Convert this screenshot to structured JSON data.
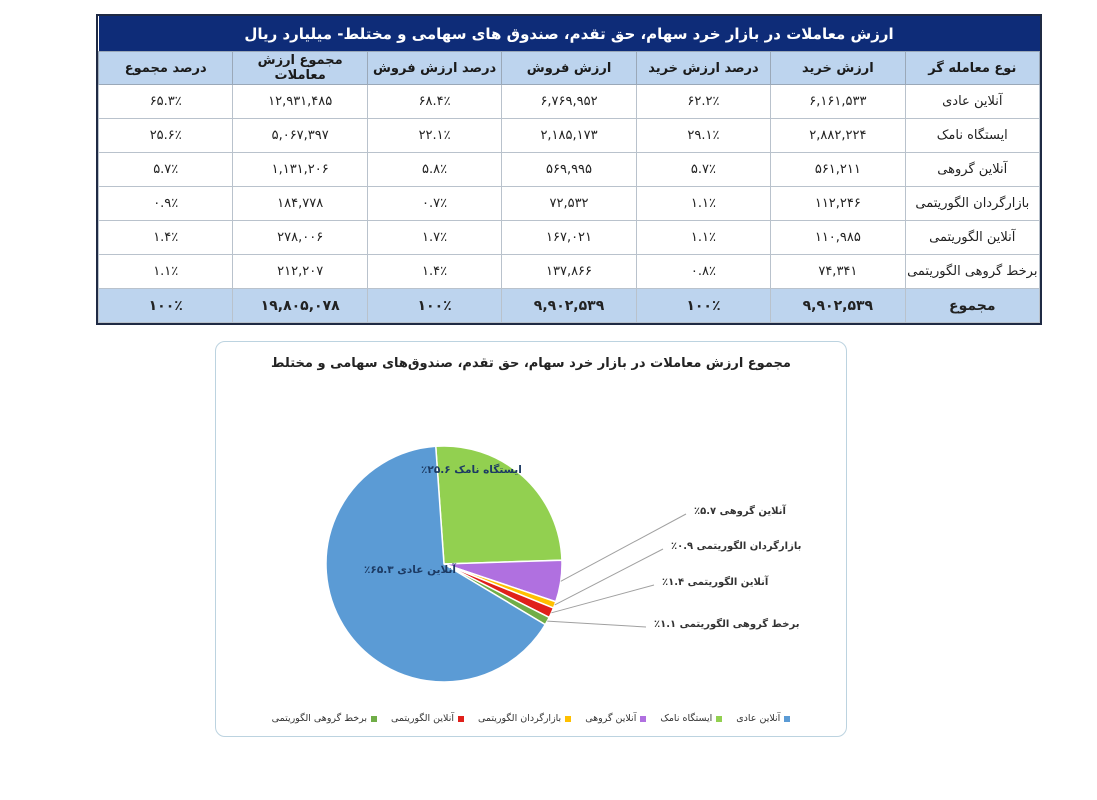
{
  "table": {
    "title": "ارزش معاملات در بازار خرد سهام، حق تقدم، صندوق های سهامی و مختلط- میلیارد ریال",
    "headers": [
      "نوع معامله گر",
      "ارزش خرید",
      "درصد ارزش خرید",
      "ارزش فروش",
      "درصد ارزش فروش",
      "مجموع ارزش معاملات",
      "درصد مجموع"
    ],
    "rows": [
      [
        "آنلاین عادی",
        "۶,۱۶۱,۵۳۳",
        "۶۲.۲٪",
        "۶,۷۶۹,۹۵۲",
        "۶۸.۴٪",
        "۱۲,۹۳۱,۴۸۵",
        "۶۵.۳٪"
      ],
      [
        "ایستگاه نامک",
        "۲,۸۸۲,۲۲۴",
        "۲۹.۱٪",
        "۲,۱۸۵,۱۷۳",
        "۲۲.۱٪",
        "۵,۰۶۷,۳۹۷",
        "۲۵.۶٪"
      ],
      [
        "آنلاین گروهی",
        "۵۶۱,۲۱۱",
        "۵.۷٪",
        "۵۶۹,۹۹۵",
        "۵.۸٪",
        "۱,۱۳۱,۲۰۶",
        "۵.۷٪"
      ],
      [
        "بازارگردان الگوریتمی",
        "۱۱۲,۲۴۶",
        "۱.۱٪",
        "۷۲,۵۳۲",
        "۰.۷٪",
        "۱۸۴,۷۷۸",
        "۰.۹٪"
      ],
      [
        "آنلاین الگوریتمی",
        "۱۱۰,۹۸۵",
        "۱.۱٪",
        "۱۶۷,۰۲۱",
        "۱.۷٪",
        "۲۷۸,۰۰۶",
        "۱.۴٪"
      ],
      [
        "برخط گروهی الگوریتمی",
        "۷۴,۳۴۱",
        "۰.۸٪",
        "۱۳۷,۸۶۶",
        "۱.۴٪",
        "۲۱۲,۲۰۷",
        "۱.۱٪"
      ]
    ],
    "total": [
      "مجموع",
      "۹,۹۰۲,۵۳۹",
      "۱۰۰٪",
      "۹,۹۰۲,۵۳۹",
      "۱۰۰٪",
      "۱۹,۸۰۵,۰۷۸",
      "۱۰۰٪"
    ]
  },
  "chart_data": {
    "type": "pie",
    "title": "مجموع ارزش معاملات در بازار خرد سهام، حق تقدم، صندوق‌های سهامی و مختلط",
    "categories": [
      "آنلاین عادی",
      "ایستگاه نامک",
      "آنلاین گروهی",
      "بازارگردان الگوریتمی",
      "آنلاین الگوریتمی",
      "برخط گروهی الگوریتمی"
    ],
    "values": [
      65.3,
      25.6,
      5.7,
      0.9,
      1.4,
      1.1
    ],
    "colors": [
      "#5b9bd5",
      "#92d050",
      "#b070e0",
      "#ffc000",
      "#e0201b",
      "#70ad47"
    ],
    "data_labels": [
      "آنلاین عادی ۶۵.۳٪",
      "ایستگاه نامک ۲۵.۶٪",
      "آنلاین گروهی ۵.۷٪",
      "بازارگردان الگوریتمی ۰.۹٪",
      "آنلاین الگوریتمی ۱.۴٪",
      "برخط گروهی الگوریتمی ۱.۱٪"
    ],
    "legend_position": "bottom",
    "unit": "%"
  }
}
